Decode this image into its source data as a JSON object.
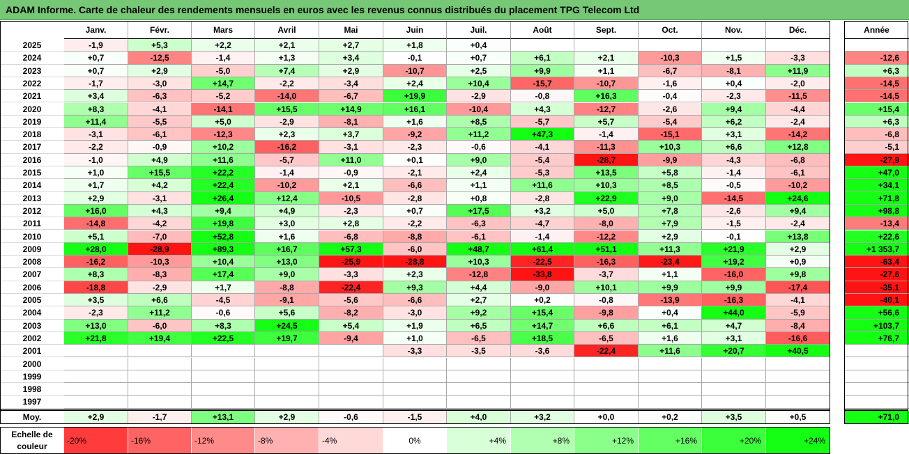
{
  "title": "ADAM Informe. Carte de chaleur des rendements mensuels en euros avec les revenus connus distribués du placement TPG Telecom Ltd",
  "chart_data": {
    "type": "heatmap",
    "title": "ADAM Informe. Carte de chaleur des rendements mensuels en euros avec les revenus connus distribués du placement TPG Telecom Ltd",
    "months": [
      "Janv.",
      "Févr.",
      "Mars",
      "Avril",
      "Mai",
      "Juin",
      "Juil.",
      "Août",
      "Sept.",
      "Oct.",
      "Nov.",
      "Déc."
    ],
    "annual_header": "Année",
    "rows": [
      {
        "year": "2025",
        "values": [
          "-1,9",
          "+5,3",
          "+2,2",
          "+2,1",
          "+2,7",
          "+1,8",
          "+0,4",
          "",
          "",
          "",
          "",
          ""
        ],
        "annual": ""
      },
      {
        "year": "2024",
        "values": [
          "+0,7",
          "-12,5",
          "-1,4",
          "+1,3",
          "+3,4",
          "-0,1",
          "+0,7",
          "+6,1",
          "+2,1",
          "-10,3",
          "+1,5",
          "-3,3"
        ],
        "annual": "-12,6"
      },
      {
        "year": "2023",
        "values": [
          "+0,7",
          "+2,9",
          "-5,0",
          "+7,4",
          "+2,9",
          "-10,7",
          "+2,5",
          "+9,9",
          "+1,1",
          "-6,7",
          "-8,1",
          "+11,9"
        ],
        "annual": "+6,3"
      },
      {
        "year": "2022",
        "values": [
          "-1,7",
          "-3,0",
          "+14,7",
          "-2,2",
          "-3,4",
          "+2,4",
          "+10,4",
          "-15,7",
          "-10,7",
          "-1,6",
          "+0,4",
          "-2,0"
        ],
        "annual": "-14,5"
      },
      {
        "year": "2021",
        "values": [
          "+3,4",
          "-6,3",
          "-5,2",
          "-14,0",
          "-6,7",
          "+19,9",
          "-2,9",
          "-0,8",
          "+16,3",
          "-0,4",
          "-2,3",
          "-11,5"
        ],
        "annual": "-14,5"
      },
      {
        "year": "2020",
        "values": [
          "+8,3",
          "-4,1",
          "-14,1",
          "+15,5",
          "+14,9",
          "+16,1",
          "-10,4",
          "+4,3",
          "-12,7",
          "-2,6",
          "+9,4",
          "-4,4"
        ],
        "annual": "+15,4"
      },
      {
        "year": "2019",
        "values": [
          "+11,4",
          "-5,5",
          "+5,0",
          "-2,9",
          "-8,1",
          "+1,6",
          "+8,5",
          "-5,7",
          "+5,7",
          "-5,4",
          "+6,2",
          "-2,4"
        ],
        "annual": "+6,3"
      },
      {
        "year": "2018",
        "values": [
          "-3,1",
          "-6,1",
          "-12,3",
          "+2,3",
          "+3,7",
          "-9,2",
          "+11,2",
          "+47,3",
          "-1,4",
          "-15,1",
          "+3,1",
          "-14,2"
        ],
        "annual": "-6,8"
      },
      {
        "year": "2017",
        "values": [
          "-2,2",
          "-0,9",
          "+10,2",
          "-16,2",
          "-3,1",
          "-2,3",
          "-0,6",
          "-4,1",
          "-11,3",
          "+10,3",
          "+6,6",
          "+12,8"
        ],
        "annual": "-5,1"
      },
      {
        "year": "2016",
        "values": [
          "-1,0",
          "+4,9",
          "+11,6",
          "-5,7",
          "+11,0",
          "+0,1",
          "+9,0",
          "-5,4",
          "-28,7",
          "-9,9",
          "-4,3",
          "-6,8"
        ],
        "annual": "-27,9"
      },
      {
        "year": "2015",
        "values": [
          "+1,0",
          "+15,5",
          "+22,2",
          "-1,4",
          "-0,9",
          "-2,1",
          "+2,4",
          "-5,3",
          "+13,5",
          "+5,8",
          "-1,4",
          "-6,1"
        ],
        "annual": "+47,0"
      },
      {
        "year": "2014",
        "values": [
          "+1,7",
          "+4,2",
          "+22,4",
          "-10,2",
          "+2,1",
          "-6,6",
          "+1,1",
          "+11,6",
          "+10,3",
          "+8,5",
          "-0,5",
          "-10,2"
        ],
        "annual": "+34,1"
      },
      {
        "year": "2013",
        "values": [
          "+2,9",
          "-3,1",
          "+26,4",
          "+12,4",
          "-10,5",
          "-2,8",
          "+0,8",
          "-2,8",
          "+22,9",
          "+9,0",
          "-14,5",
          "+24,6"
        ],
        "annual": "+71,8"
      },
      {
        "year": "2012",
        "values": [
          "+16,0",
          "+4,3",
          "+9,4",
          "+4,9",
          "-2,3",
          "+0,7",
          "+17,5",
          "+3,2",
          "+5,0",
          "+7,8",
          "-2,6",
          "+9,4"
        ],
        "annual": "+98,8"
      },
      {
        "year": "2011",
        "values": [
          "-14,8",
          "-4,2",
          "+19,8",
          "+3,0",
          "+2,8",
          "-2,2",
          "-6,3",
          "-4,7",
          "-8,0",
          "+7,9",
          "-1,5",
          "-2,4"
        ],
        "annual": "-13,4"
      },
      {
        "year": "2010",
        "values": [
          "+5,1",
          "-7,0",
          "+52,8",
          "+1,6",
          "-6,8",
          "-8,8",
          "-6,1",
          "-1,4",
          "-12,2",
          "+2,9",
          "-0,1",
          "+13,8"
        ],
        "annual": "+22,6"
      },
      {
        "year": "2009",
        "values": [
          "+28,0",
          "-28,9",
          "+89,3",
          "+16,7",
          "+57,3",
          "-6,0",
          "+48,7",
          "+61,4",
          "+51,1",
          "+11,3",
          "+21,9",
          "+2,9"
        ],
        "annual": "+1 353,7"
      },
      {
        "year": "2008",
        "values": [
          "-16,2",
          "-10,3",
          "+10,4",
          "+13,0",
          "-25,9",
          "-28,8",
          "+10,3",
          "-22,5",
          "-16,3",
          "-23,4",
          "+19,2",
          "+0,9"
        ],
        "annual": "-63,4"
      },
      {
        "year": "2007",
        "values": [
          "+8,3",
          "-8,3",
          "+17,4",
          "+9,0",
          "-3,3",
          "+2,3",
          "-12,8",
          "-33,8",
          "-3,7",
          "+1,1",
          "-16,0",
          "+9,8"
        ],
        "annual": "-27,6"
      },
      {
        "year": "2006",
        "values": [
          "-18,8",
          "-2,9",
          "+1,7",
          "-8,8",
          "-22,4",
          "+9,3",
          "+4,4",
          "-9,0",
          "+10,1",
          "+9,9",
          "+9,9",
          "-17,4"
        ],
        "annual": "-35,1"
      },
      {
        "year": "2005",
        "values": [
          "+3,5",
          "+6,6",
          "-4,5",
          "-9,1",
          "-5,6",
          "-6,6",
          "+2,7",
          "+0,2",
          "-0,8",
          "-13,9",
          "-16,3",
          "-4,1"
        ],
        "annual": "-40,1"
      },
      {
        "year": "2004",
        "values": [
          "-2,3",
          "+11,2",
          "-0,6",
          "+5,6",
          "-8,2",
          "-3,0",
          "+9,2",
          "+15,4",
          "-9,8",
          "+0,4",
          "+44,0",
          "-5,9"
        ],
        "annual": "+56,6"
      },
      {
        "year": "2003",
        "values": [
          "+13,0",
          "-6,0",
          "+8,3",
          "+24,5",
          "+5,4",
          "+1,9",
          "+6,5",
          "+14,7",
          "+6,6",
          "+6,1",
          "+4,7",
          "-8,4"
        ],
        "annual": "+103,7"
      },
      {
        "year": "2002",
        "values": [
          "+21,8",
          "+19,4",
          "+22,5",
          "+19,7",
          "-9,4",
          "+1,0",
          "-6,5",
          "+18,5",
          "-6,5",
          "+1,6",
          "+3,1",
          "-16,6"
        ],
        "annual": "+76,7"
      },
      {
        "year": "2001",
        "values": [
          "",
          "",
          "",
          "",
          "",
          "-3,3",
          "-3,5",
          "-3,6",
          "-22,4",
          "+11,6",
          "+20,7",
          "+40,5"
        ],
        "annual": ""
      },
      {
        "year": "2000",
        "values": [
          "",
          "",
          "",
          "",
          "",
          "",
          "",
          "",
          "",
          "",
          "",
          ""
        ],
        "annual": ""
      },
      {
        "year": "1999",
        "values": [
          "",
          "",
          "",
          "",
          "",
          "",
          "",
          "",
          "",
          "",
          "",
          ""
        ],
        "annual": ""
      },
      {
        "year": "1998",
        "values": [
          "",
          "",
          "",
          "",
          "",
          "",
          "",
          "",
          "",
          "",
          "",
          ""
        ],
        "annual": ""
      },
      {
        "year": "1997",
        "values": [
          "",
          "",
          "",
          "",
          "",
          "",
          "",
          "",
          "",
          "",
          "",
          ""
        ],
        "annual": ""
      }
    ],
    "average": {
      "label": "Moy.",
      "values": [
        "+2,9",
        "-1,7",
        "+13,1",
        "+2,9",
        "-0,6",
        "-1,5",
        "+4,0",
        "+3,2",
        "+0,0",
        "+0,2",
        "+3,5",
        "+0,5"
      ],
      "annual": "+71,0"
    },
    "color_scale": {
      "label_line1": "Echelle de",
      "label_line2": "couleur",
      "steps": [
        "-20%",
        "-16%",
        "-12%",
        "-8%",
        "-4%",
        "0%",
        "+4%",
        "+8%",
        "+12%",
        "+16%",
        "+20%",
        "+24%"
      ],
      "step_values": [
        -20,
        -16,
        -12,
        -8,
        -4,
        0,
        4,
        8,
        12,
        16,
        20,
        24
      ],
      "negative_color": "#ff0000",
      "positive_color": "#00ff00",
      "neutral_color": "#ffffff"
    }
  }
}
